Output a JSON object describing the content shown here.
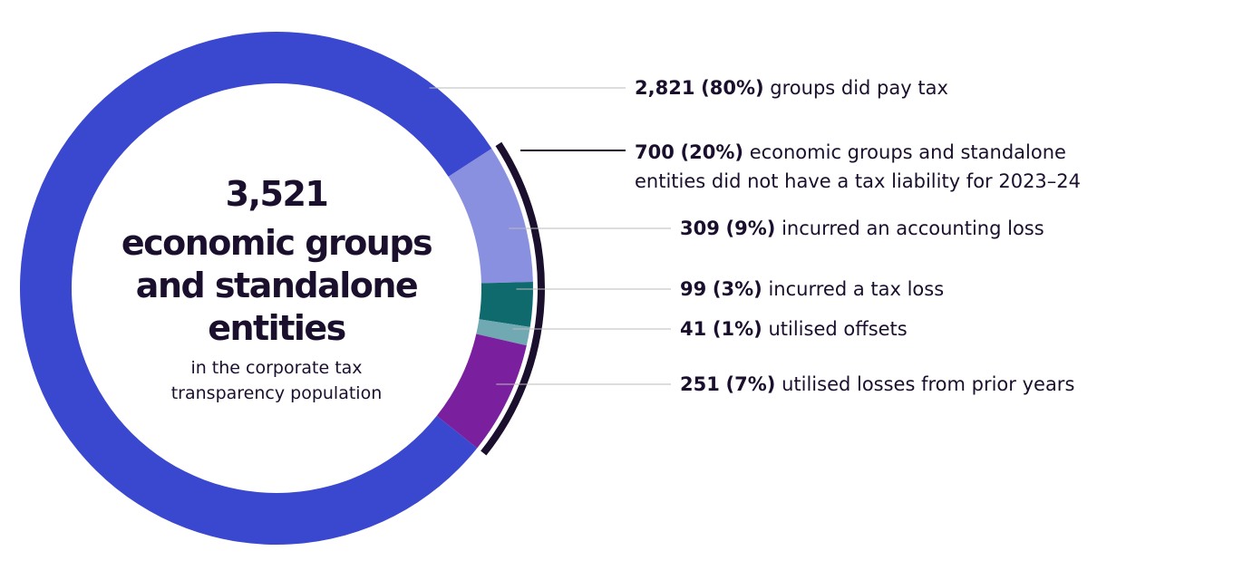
{
  "chart_data": {
    "type": "donut",
    "center": {
      "value": 3521,
      "value_label": "3,521",
      "title_lines": [
        "economic groups",
        "and standalone",
        "entities"
      ],
      "subtitle_lines": [
        "in the corporate tax",
        "transparency population"
      ]
    },
    "categories": [
      "groups did pay tax",
      "incurred an accounting loss",
      "incurred a tax loss",
      "utilised offsets",
      "utilised losses from prior years"
    ],
    "values": [
      2821,
      309,
      99,
      41,
      251
    ],
    "value_labels": [
      "2,821",
      "309",
      "99",
      "41",
      "251"
    ],
    "percents": [
      80,
      9,
      3,
      1,
      7
    ],
    "percent_labels": [
      "(80%)",
      "(9%)",
      "(3%)",
      "(1%)",
      "(7%)"
    ],
    "colors": [
      "#3a47cf",
      "#8a90e0",
      "#0f6a6e",
      "#70a9b2",
      "#7a209e"
    ],
    "group": {
      "value": 700,
      "value_label": "700",
      "percent": 20,
      "percent_label": "(20%)",
      "label_lines": [
        "economic groups and standalone",
        "entities did not have a tax liability for 2023–24"
      ],
      "color": "#1b0f2e"
    }
  }
}
